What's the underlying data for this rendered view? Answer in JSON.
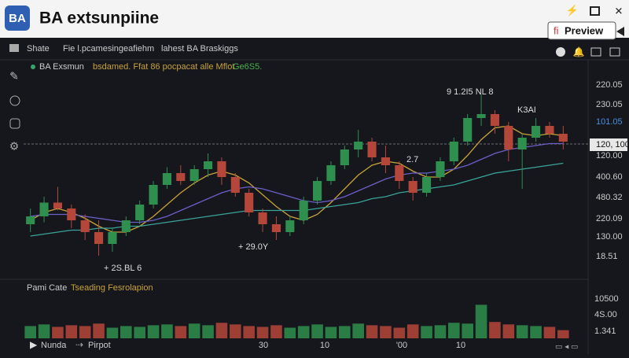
{
  "header": {
    "logo": "BA",
    "title": "BA extsunpiine",
    "button": "Preview"
  },
  "toolbar": [
    "Shate",
    "Fie l.pcamesingeafiehm",
    "lahest BA Braskiggs"
  ],
  "legend": {
    "symbol": "BA Exsmun",
    "study": "bsdamed. Ffat 86 pocpacat alle Mflot",
    "study_value": "Ge6S5."
  },
  "chart": {
    "type": "candlestick",
    "ylim": [
      0,
      100
    ],
    "up_color": "#2f8f4e",
    "down_color": "#b5473a",
    "candles": [
      [
        26,
        34,
        22,
        30
      ],
      [
        30,
        40,
        27,
        37
      ],
      [
        37,
        45,
        33,
        34
      ],
      [
        34,
        36,
        24,
        28
      ],
      [
        28,
        31,
        18,
        22
      ],
      [
        22,
        28,
        10,
        16
      ],
      [
        16,
        24,
        12,
        22
      ],
      [
        22,
        30,
        20,
        28
      ],
      [
        28,
        38,
        26,
        36
      ],
      [
        36,
        48,
        34,
        46
      ],
      [
        46,
        55,
        44,
        52
      ],
      [
        52,
        56,
        46,
        48
      ],
      [
        48,
        56,
        46,
        54
      ],
      [
        54,
        62,
        50,
        58
      ],
      [
        58,
        60,
        46,
        50
      ],
      [
        50,
        52,
        40,
        42
      ],
      [
        42,
        44,
        30,
        32
      ],
      [
        32,
        34,
        22,
        26
      ],
      [
        26,
        30,
        18,
        22
      ],
      [
        22,
        30,
        20,
        28
      ],
      [
        28,
        40,
        26,
        38
      ],
      [
        38,
        50,
        36,
        48
      ],
      [
        48,
        58,
        46,
        56
      ],
      [
        56,
        66,
        54,
        64
      ],
      [
        64,
        74,
        60,
        68
      ],
      [
        68,
        70,
        58,
        60
      ],
      [
        60,
        66,
        52,
        56
      ],
      [
        56,
        58,
        44,
        48
      ],
      [
        48,
        50,
        38,
        42
      ],
      [
        42,
        52,
        40,
        50
      ],
      [
        50,
        60,
        48,
        58
      ],
      [
        58,
        70,
        56,
        68
      ],
      [
        68,
        82,
        66,
        80
      ],
      [
        80,
        92,
        76,
        82
      ],
      [
        82,
        84,
        72,
        76
      ],
      [
        76,
        78,
        58,
        64
      ],
      [
        64,
        72,
        44,
        70
      ],
      [
        70,
        80,
        68,
        76
      ],
      [
        76,
        78,
        70,
        72
      ],
      [
        72,
        76,
        64,
        68
      ]
    ],
    "series": [
      {
        "color": "#c9a23a",
        "values": [
          28,
          32,
          34,
          32,
          29,
          25,
          22,
          22,
          25,
          30,
          36,
          42,
          47,
          51,
          53,
          51,
          47,
          41,
          35,
          30,
          28,
          31,
          37,
          44,
          51,
          56,
          58,
          57,
          53,
          50,
          50,
          54,
          61,
          69,
          75,
          76,
          72,
          71,
          72,
          71
        ]
      },
      {
        "color": "#6b5fc9",
        "values": [
          30,
          31,
          31,
          31,
          30,
          29,
          28,
          27,
          27,
          28,
          30,
          33,
          36,
          39,
          42,
          44,
          45,
          44,
          42,
          40,
          38,
          37,
          38,
          40,
          43,
          46,
          49,
          51,
          52,
          52,
          53,
          54,
          56,
          59,
          62,
          64,
          65,
          66,
          67,
          67
        ]
      },
      {
        "color": "#3aa39a",
        "values": [
          20,
          21,
          22,
          23,
          23,
          24,
          24,
          25,
          25,
          26,
          27,
          28,
          29,
          30,
          31,
          32,
          33,
          33,
          33,
          33,
          33,
          34,
          35,
          36,
          37,
          39,
          40,
          42,
          43,
          44,
          45,
          46,
          48,
          50,
          52,
          53,
          54,
          55,
          56,
          57
        ]
      }
    ],
    "annotations": [
      "9 1.2I5 NL 8",
      "+ 2S.BL 6",
      "+ 29.0Y",
      "2.7",
      "K3AI"
    ],
    "price_labels": [
      "220.05",
      "230.05",
      "101.05",
      "120, 100",
      "120.00",
      "400.60",
      "480.32",
      "220.09",
      "130.00",
      "18.51"
    ],
    "volume_title": [
      "Pami Cate",
      "Tseading Fesrolapion"
    ],
    "volume_ylim": [
      0,
      100
    ],
    "volume": [
      30,
      34,
      28,
      32,
      30,
      36,
      26,
      30,
      28,
      32,
      34,
      30,
      36,
      32,
      38,
      34,
      30,
      28,
      32,
      26,
      30,
      34,
      28,
      30,
      36,
      32,
      30,
      26,
      34,
      30,
      32,
      38,
      36,
      82,
      40,
      34,
      32,
      30,
      28,
      20
    ],
    "volume_labels": [
      "10500",
      "4S.00",
      "1.341"
    ],
    "x_labels": [
      "30",
      "10",
      "'00",
      "10"
    ]
  },
  "footer": [
    "Nunda",
    "Pirpot"
  ]
}
